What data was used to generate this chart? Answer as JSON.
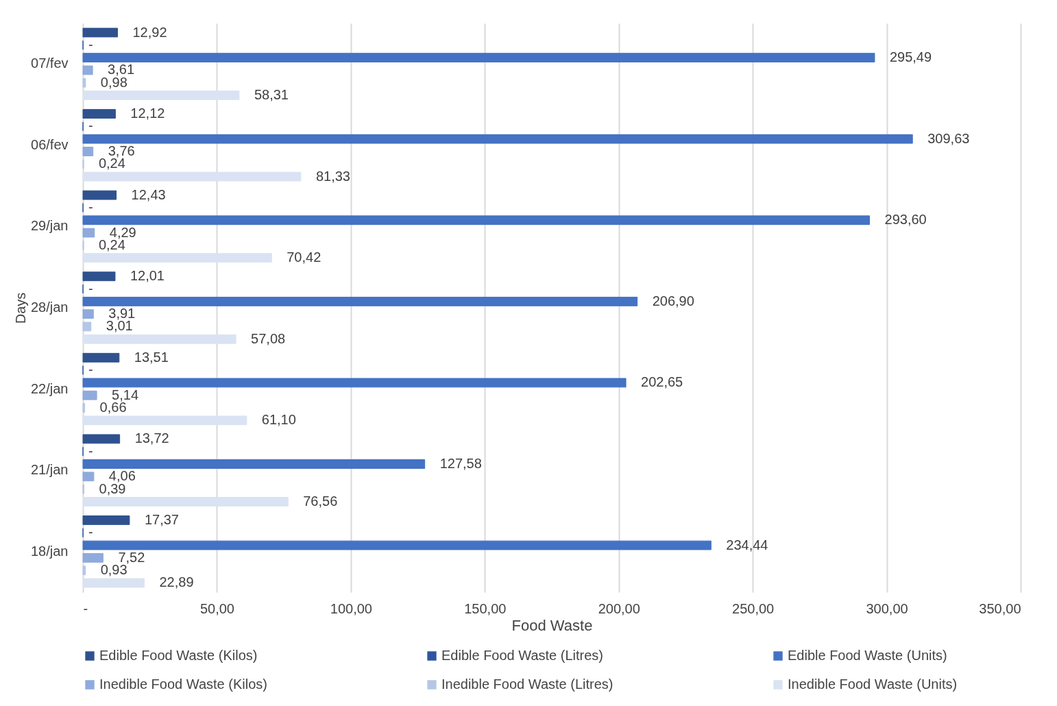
{
  "chart_data": {
    "type": "bar",
    "orientation": "horizontal",
    "xlabel": "Food Waste",
    "ylabel": "Days",
    "categories": [
      "07/fev",
      "06/fev",
      "29/jan",
      "28/jan",
      "22/jan",
      "21/jan",
      "18/jan"
    ],
    "series": [
      {
        "name": "Edible Food Waste (Kilos)",
        "color": "#2f528f",
        "values": [
          12.92,
          12.12,
          12.43,
          12.01,
          13.51,
          13.72,
          17.37
        ],
        "value_labels": [
          "12,92",
          "12,12",
          "12,43",
          "12,01",
          "13,51",
          "13,72",
          "17,37"
        ]
      },
      {
        "name": "Edible Food Waste (Litres)",
        "color": "#2e54a0",
        "values": [
          0,
          0,
          0,
          0,
          0,
          0,
          0
        ],
        "value_labels": [
          "-",
          "-",
          "-",
          "-",
          "-",
          "-",
          "-"
        ]
      },
      {
        "name": "Edible Food Waste (Units)",
        "color": "#4472c4",
        "values": [
          295.49,
          309.63,
          293.6,
          206.9,
          202.65,
          127.58,
          234.44
        ],
        "value_labels": [
          "295,49",
          "309,63",
          "293,60",
          "206,90",
          "202,65",
          "127,58",
          "234,44"
        ]
      },
      {
        "name": "Inedible Food Waste (Kilos)",
        "color": "#8faadc",
        "values": [
          3.61,
          3.76,
          4.29,
          3.91,
          5.14,
          4.06,
          7.52
        ],
        "value_labels": [
          "3,61",
          "3,76",
          "4,29",
          "3,91",
          "5,14",
          "4,06",
          "7,52"
        ]
      },
      {
        "name": "Inedible Food Waste (Litres)",
        "color": "#b4c7e7",
        "values": [
          0.98,
          0.24,
          0.24,
          3.01,
          0.66,
          0.39,
          0.93
        ],
        "value_labels": [
          "0,98",
          "0,24",
          "0,24",
          "3,01",
          "0,66",
          "0,39",
          "0,93"
        ]
      },
      {
        "name": "Inedible Food Waste (Units)",
        "color": "#dae3f3",
        "values": [
          58.31,
          81.33,
          70.42,
          57.08,
          61.1,
          76.56,
          22.89
        ],
        "value_labels": [
          "58,31",
          "81,33",
          "70,42",
          "57,08",
          "61,10",
          "76,56",
          "22,89"
        ]
      }
    ],
    "xlim": [
      0,
      350
    ],
    "xticks": [
      {
        "value": 0,
        "label": "-"
      },
      {
        "value": 50,
        "label": "50,00"
      },
      {
        "value": 100,
        "label": "100,00"
      },
      {
        "value": 150,
        "label": "150,00"
      },
      {
        "value": 200,
        "label": "200,00"
      },
      {
        "value": 250,
        "label": "250,00"
      },
      {
        "value": 300,
        "label": "300,00"
      },
      {
        "value": 350,
        "label": "350,00"
      }
    ],
    "grid": "x",
    "legend": "bottom"
  }
}
